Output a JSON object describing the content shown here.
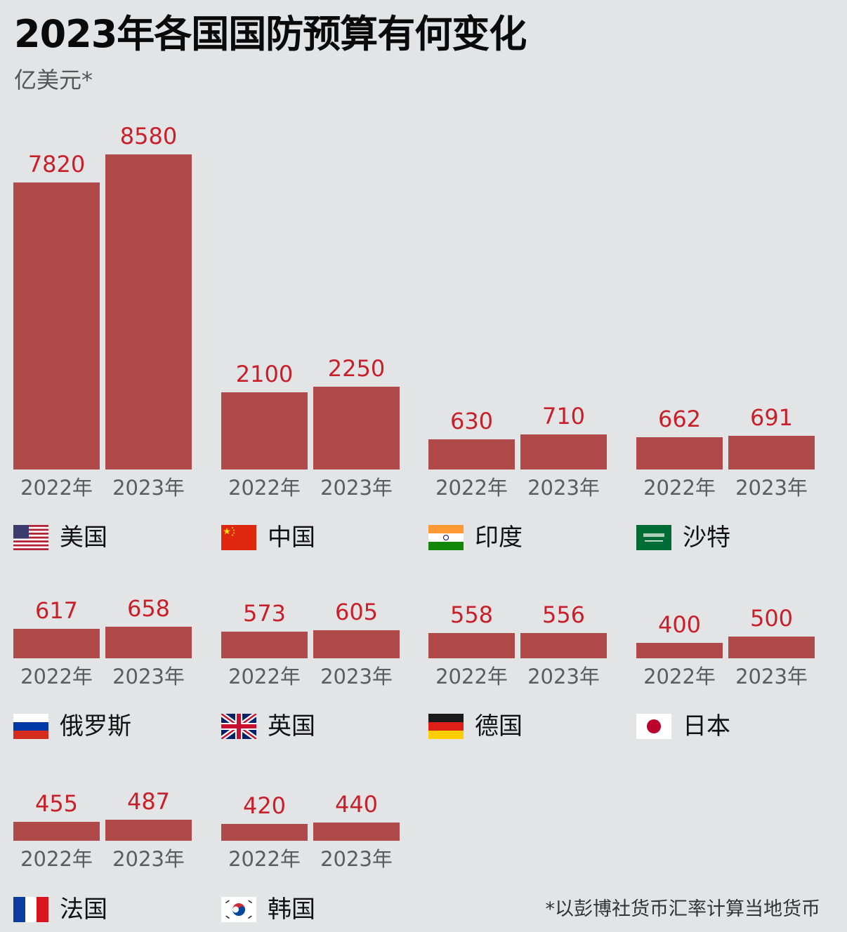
{
  "header": {
    "title": "2023年各国国防预算有何变化",
    "unit": "亿美元*"
  },
  "footnote": "*以彭博社货币汇率计算当地货币",
  "colors": {
    "bar": "#b04a4a",
    "value_label": "#c8202a",
    "background": "#e3e4e6"
  },
  "year_labels": [
    "2022年",
    "2023年"
  ],
  "countries": [
    {
      "name": "美国",
      "flag": "us-flag",
      "v2022": "7820",
      "v2023": "8580"
    },
    {
      "name": "中国",
      "flag": "china-flag",
      "v2022": "2100",
      "v2023": "2250"
    },
    {
      "name": "印度",
      "flag": "india-flag",
      "v2022": "630",
      "v2023": "710"
    },
    {
      "name": "沙特",
      "flag": "saudi-flag",
      "v2022": "662",
      "v2023": "691"
    },
    {
      "name": "俄罗斯",
      "flag": "russia-flag",
      "v2022": "617",
      "v2023": "658"
    },
    {
      "name": "英国",
      "flag": "uk-flag",
      "v2022": "573",
      "v2023": "605"
    },
    {
      "name": "德国",
      "flag": "germany-flag",
      "v2022": "558",
      "v2023": "556"
    },
    {
      "name": "日本",
      "flag": "japan-flag",
      "v2022": "400",
      "v2023": "500"
    },
    {
      "name": "法国",
      "flag": "france-flag",
      "v2022": "455",
      "v2023": "487"
    },
    {
      "name": "韩国",
      "flag": "korea-flag",
      "v2022": "420",
      "v2023": "440"
    }
  ],
  "chart_data": {
    "type": "bar",
    "title": "2023年各国国防预算有何变化",
    "subtitle": "亿美元*",
    "xlabel": "",
    "ylabel": "亿美元",
    "categories": [
      "美国",
      "中国",
      "印度",
      "沙特",
      "俄罗斯",
      "英国",
      "德国",
      "日本",
      "法国",
      "韩国"
    ],
    "series": [
      {
        "name": "2022年",
        "values": [
          7820,
          2100,
          630,
          662,
          617,
          573,
          558,
          400,
          455,
          420
        ]
      },
      {
        "name": "2023年",
        "values": [
          8580,
          2250,
          710,
          691,
          658,
          605,
          556,
          500,
          487,
          440
        ]
      }
    ],
    "layout": "small multiples, 4 per row, 3 rows; data labels above bars; no axes, no gridlines",
    "annotations": [
      "*以彭博社货币汇率计算当地货币"
    ],
    "ylim": [
      0,
      8580
    ]
  }
}
